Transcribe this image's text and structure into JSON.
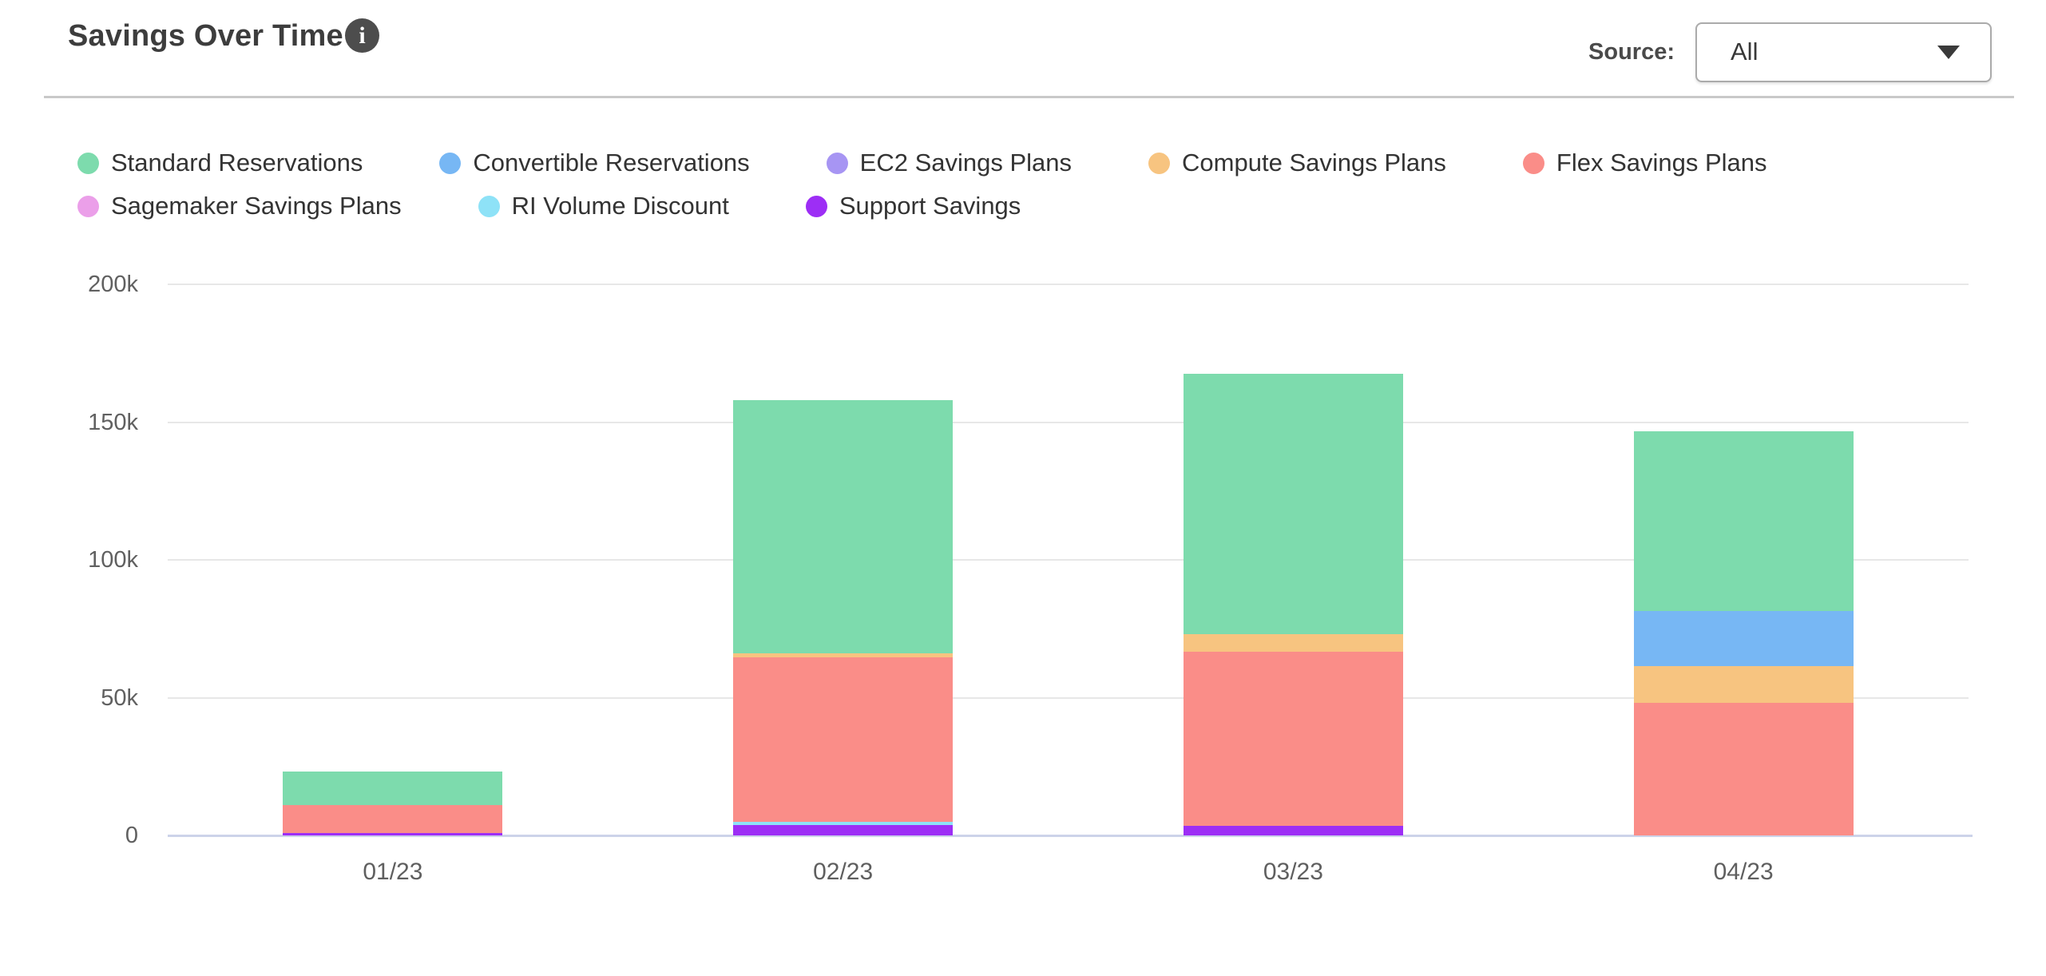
{
  "header": {
    "title": "Savings Over Time",
    "info_icon": "i",
    "source_label": "Source:",
    "source_value": "All"
  },
  "chart_data": {
    "type": "bar",
    "stacked": true,
    "title": "Savings Over Time",
    "unit": "thousand (k)",
    "categories": [
      "01/23",
      "02/23",
      "03/23",
      "04/23"
    ],
    "series": [
      {
        "name": "Standard Reservations",
        "color": "#7DDBAD",
        "values": [
          12.3,
          91.9,
          94.4,
          65.2
        ]
      },
      {
        "name": "Convertible Reservations",
        "color": "#77B7F4",
        "values": [
          0,
          0,
          0,
          19.9
        ]
      },
      {
        "name": "EC2 Savings Plans",
        "color": "#A795F3",
        "values": [
          0,
          0,
          0,
          0
        ]
      },
      {
        "name": "Compute Savings Plans",
        "color": "#F7C480",
        "values": [
          0,
          1.5,
          6.4,
          13.3
        ]
      },
      {
        "name": "Flex Savings Plans",
        "color": "#FA8D88",
        "values": [
          10.0,
          59.6,
          63.0,
          48.2
        ]
      },
      {
        "name": "Sagemaker Savings Plans",
        "color": "#EB9FE9",
        "values": [
          0,
          0,
          0,
          0
        ]
      },
      {
        "name": "RI Volume Discount",
        "color": "#8EE2F7",
        "values": [
          0,
          1.2,
          0,
          0
        ]
      },
      {
        "name": "Support Savings",
        "color": "#9D2EF5",
        "values": [
          1.0,
          3.7,
          3.6,
          0
        ]
      }
    ],
    "totals": [
      23.3,
      157.9,
      167.4,
      146.6
    ],
    "stack_order": "reverse-legend (Support Savings at bottom, Standard Reservations on top)",
    "y_ticks": [
      {
        "label": "200k",
        "value": 200
      },
      {
        "label": "150k",
        "value": 150
      },
      {
        "label": "100k",
        "value": 100
      },
      {
        "label": "50k",
        "value": 50
      },
      {
        "label": "0",
        "value": 0
      }
    ],
    "ylim": [
      0,
      200
    ],
    "grid": true,
    "legend_position": "top-left, two rows"
  }
}
